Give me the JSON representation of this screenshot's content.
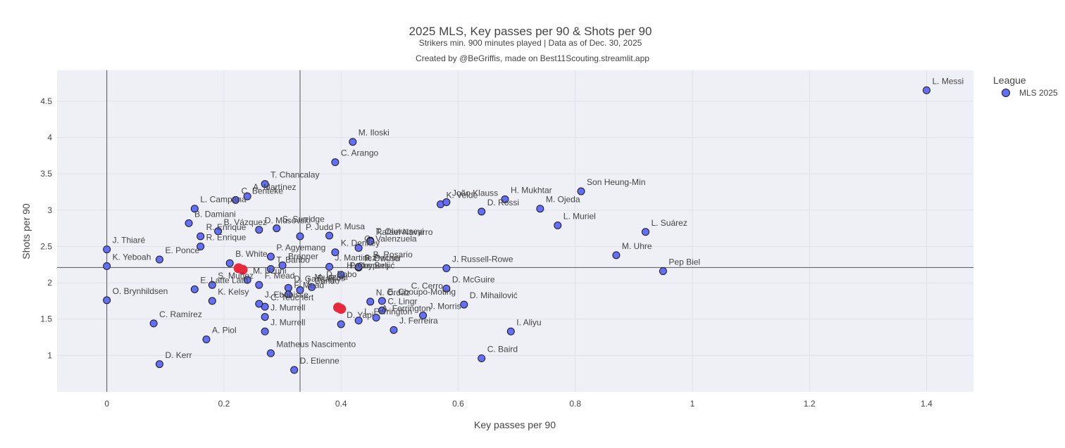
{
  "chart_data": {
    "type": "scatter",
    "title": "2025 MLS, Key passes per 90 & Shots per 90",
    "subtitle": "Strikers min. 900 minutes played | Data as of Dec. 30, 2025",
    "credit": "Created by @BeGriffis, made on Best11Scouting.streamlit.app",
    "xlabel": "Key passes per 90",
    "ylabel": "Shots per 90",
    "xlim": [
      -0.085,
      1.48
    ],
    "ylim": [
      0.5,
      4.925
    ],
    "x_ticks": [
      "0",
      "0.2",
      "0.4",
      "0.6",
      "0.8",
      "1",
      "1.2",
      "1.4"
    ],
    "y_ticks": [
      "1",
      "1.5",
      "2",
      "2.5",
      "3",
      "3.5",
      "4",
      "4.5"
    ],
    "grid": true,
    "reference_lines": {
      "vertical": [
        0,
        0.33
      ],
      "horizontal": [
        2.21
      ]
    },
    "legend": {
      "title": "League",
      "position": "top-right",
      "entries": [
        "MLS 2025"
      ]
    },
    "colors": {
      "marker": "#636efa",
      "marker_edge": "#1a1a1a",
      "highlight": "#e8293b",
      "plot_bg": "#eff0f6",
      "grid": "#dfe1ea",
      "ref_line": "#555555"
    },
    "series": [
      {
        "name": "MLS 2025",
        "points": [
          {
            "x": 1.4,
            "y": 4.65,
            "label": "L. Messi"
          },
          {
            "x": 0.42,
            "y": 3.94,
            "label": "M. Iloski"
          },
          {
            "x": 0.39,
            "y": 3.66,
            "label": "C. Arango"
          },
          {
            "x": 0.27,
            "y": 3.36,
            "label": "T. Chancalay"
          },
          {
            "x": 0.24,
            "y": 3.19,
            "label": "A. Martínez"
          },
          {
            "x": 0.22,
            "y": 3.14,
            "label": "C. Benteke"
          },
          {
            "x": 0.15,
            "y": 3.02,
            "label": "L. Campana"
          },
          {
            "x": 0.14,
            "y": 2.82,
            "label": "B. Damiani"
          },
          {
            "x": 0.19,
            "y": 2.71,
            "label": "B. Vázquez"
          },
          {
            "x": 0.16,
            "y": 2.64,
            "label": "R. Enrique"
          },
          {
            "x": 0.26,
            "y": 2.73,
            "label": "D. Musovski"
          },
          {
            "x": 0.29,
            "y": 2.75,
            "label": "S. Surridge"
          },
          {
            "x": 0.33,
            "y": 2.64,
            "label": "P. Judd"
          },
          {
            "x": 0.38,
            "y": 2.65,
            "label": "P. Musa"
          },
          {
            "x": 0.43,
            "y": 2.48,
            "label": "G. Valenzuela"
          },
          {
            "x": 0.45,
            "y": 2.58,
            "label": "T. Oluwaseyi"
          },
          {
            "x": 0.39,
            "y": 2.42,
            "label": "K. Denkey"
          },
          {
            "x": 0.45,
            "y": 2.57,
            "label": "Rafael Navarro"
          },
          {
            "x": 0.0,
            "y": 2.46,
            "label": "J. Thiaré"
          },
          {
            "x": 0.0,
            "y": 2.23,
            "label": "K. Yeboah"
          },
          {
            "x": 0.09,
            "y": 2.32,
            "label": "E. Ponce"
          },
          {
            "x": 0.16,
            "y": 2.5,
            "label": "R. Enrique"
          },
          {
            "x": 0.21,
            "y": 2.27,
            "label": "B. White"
          },
          {
            "x": 0.28,
            "y": 2.36,
            "label": "P. Agyemang"
          },
          {
            "x": 0.3,
            "y": 2.24,
            "label": "Brenner"
          },
          {
            "x": 0.28,
            "y": 2.19,
            "label": "T. Baribo"
          },
          {
            "x": 0.38,
            "y": 2.22,
            "label": "J. Martinez"
          },
          {
            "x": 0.43,
            "y": 2.21,
            "label": "P. Owusu"
          },
          {
            "x": 0.43,
            "y": 2.22,
            "label": "S. Pecher"
          },
          {
            "x": 0.4,
            "y": 2.11,
            "label": "H. Cuypers"
          },
          {
            "x": 0.58,
            "y": 2.2,
            "label": "J. Russell-Rowe"
          },
          {
            "x": 0.64,
            "y": 2.98,
            "label": "D. Rossi"
          },
          {
            "x": 0.57,
            "y": 3.08,
            "label": "K. Velde"
          },
          {
            "x": 0.58,
            "y": 3.11,
            "label": "João Klauss"
          },
          {
            "x": 0.68,
            "y": 3.15,
            "label": "H. Mukhtar"
          },
          {
            "x": 0.74,
            "y": 3.02,
            "label": "M. Ojeda"
          },
          {
            "x": 0.81,
            "y": 3.26,
            "label": "Son Heung-Min"
          },
          {
            "x": 0.77,
            "y": 2.79,
            "label": "L. Muriel"
          },
          {
            "x": 0.92,
            "y": 2.7,
            "label": "L. Suárez"
          },
          {
            "x": 0.87,
            "y": 2.38,
            "label": "M. Uhre"
          },
          {
            "x": 0.95,
            "y": 2.16,
            "label": "Pep Biel"
          },
          {
            "x": 0.15,
            "y": 1.91,
            "label": "E. Latte Lath"
          },
          {
            "x": 0.18,
            "y": 1.97,
            "label": "S. Muñoz"
          },
          {
            "x": 0.24,
            "y": 2.04,
            "label": "M. Uzuni"
          },
          {
            "x": 0.18,
            "y": 1.75,
            "label": "K. Kelsy"
          },
          {
            "x": 0.26,
            "y": 1.97,
            "label": "F. Mead"
          },
          {
            "x": 0.31,
            "y": 1.93,
            "label": "D. Gazdag"
          },
          {
            "x": 0.33,
            "y": 1.9,
            "label": "J. Cando"
          },
          {
            "x": 0.35,
            "y": 1.94,
            "label": "D. Rios"
          },
          {
            "x": 0.31,
            "y": 1.84,
            "label": "F. Mead"
          },
          {
            "x": 0.27,
            "y": 1.67,
            "label": "C. Teuchert"
          },
          {
            "x": 0.26,
            "y": 1.71,
            "label": "J. Ebobisse"
          },
          {
            "x": 0.27,
            "y": 1.53,
            "label": "J. Murrell"
          },
          {
            "x": 0.0,
            "y": 1.76,
            "label": "O. Brynhildsen"
          },
          {
            "x": 0.08,
            "y": 1.44,
            "label": "C. Ramírez"
          },
          {
            "x": 0.17,
            "y": 1.22,
            "label": "A. Piol"
          },
          {
            "x": 0.27,
            "y": 1.33,
            "label": "J. Murrell"
          },
          {
            "x": 0.28,
            "y": 1.03,
            "label": "Matheus Nascimento"
          },
          {
            "x": 0.09,
            "y": 0.88,
            "label": "D. Kerr"
          },
          {
            "x": 0.32,
            "y": 0.8,
            "label": "D. Etienne"
          },
          {
            "x": 0.4,
            "y": 1.43,
            "label": "D. Yapi"
          },
          {
            "x": 0.43,
            "y": 1.48,
            "label": "L. Ferrington"
          },
          {
            "x": 0.46,
            "y": 1.52,
            "label": "A. Ferrington"
          },
          {
            "x": 0.47,
            "y": 1.62,
            "label": "C. Lingr"
          },
          {
            "x": 0.45,
            "y": 1.74,
            "label": "N. Ordaz"
          },
          {
            "x": 0.47,
            "y": 1.75,
            "label": "E. Choupo-Moting"
          },
          {
            "x": 0.54,
            "y": 1.55,
            "label": "J. Morris"
          },
          {
            "x": 0.49,
            "y": 1.35,
            "label": "J. Ferreira"
          },
          {
            "x": 0.58,
            "y": 1.92,
            "label": "D. McGuire"
          },
          {
            "x": 0.61,
            "y": 1.7,
            "label": "D. Mihailović"
          },
          {
            "x": 0.69,
            "y": 1.33,
            "label": "I. Aliyu"
          },
          {
            "x": 0.64,
            "y": 0.96,
            "label": "C. Baird"
          }
        ],
        "highlight_points": [
          {
            "x": 0.225,
            "y": 2.2
          },
          {
            "x": 0.232,
            "y": 2.18
          },
          {
            "x": 0.395,
            "y": 1.66
          },
          {
            "x": 0.4,
            "y": 1.64
          }
        ]
      }
    ],
    "overlap_labels": [
      {
        "x": 0.51,
        "y": 1.83,
        "label": "C. Cerro"
      },
      {
        "x": 0.365,
        "y": 1.99,
        "label": "D. Bobo"
      },
      {
        "x": 0.445,
        "y": 2.26,
        "label": "B. Rosario"
      },
      {
        "x": 0.405,
        "y": 2.11,
        "label": "Pedro Beljić"
      },
      {
        "x": 0.345,
        "y": 1.95,
        "label": "M. Uzuni"
      }
    ]
  }
}
